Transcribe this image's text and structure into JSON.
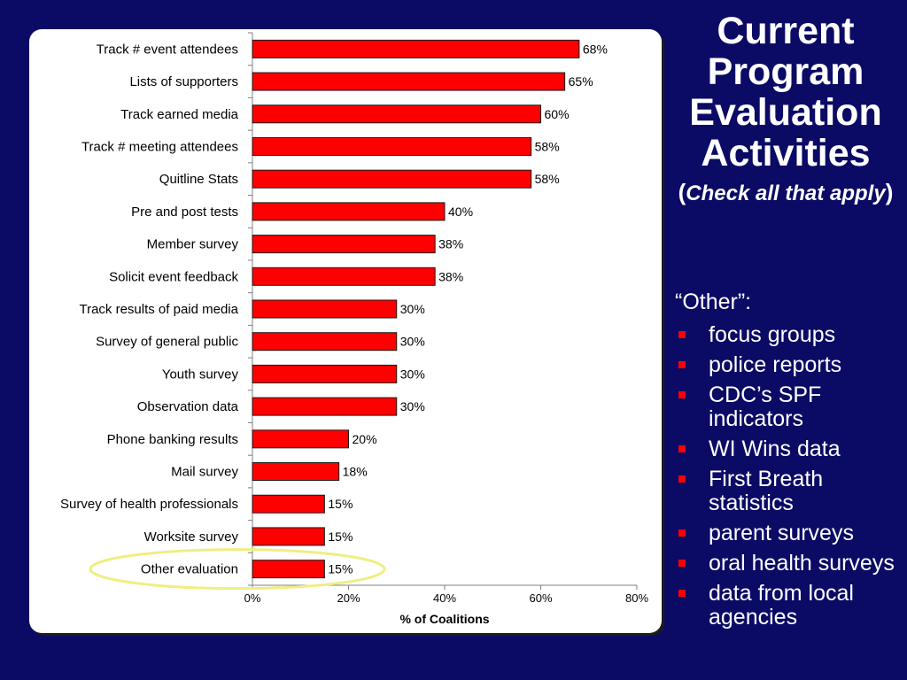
{
  "slide": {
    "title_lines": [
      "Current",
      "Program",
      "Evaluation",
      "Activities"
    ],
    "subtitle_open": "(",
    "subtitle_italic": "Check all that apply",
    "subtitle_close": ")"
  },
  "notes": {
    "heading": "“Other”:",
    "items": [
      "focus groups",
      "police reports",
      "CDC’s SPF indicators",
      "WI Wins data",
      "First Breath statistics",
      "parent surveys",
      "oral health surveys",
      "data from local agencies"
    ]
  },
  "colors": {
    "background": "#0b0b66",
    "bar_fill": "#ff0000",
    "bar_stroke": "#1a1a1a",
    "highlight_ellipse": "#f0ee80",
    "bullet": "#ff0000"
  },
  "chart_data": {
    "type": "bar",
    "orientation": "horizontal",
    "categories": [
      "Track # event attendees",
      "Lists of supporters",
      "Track earned media",
      "Track # meeting attendees",
      "Quitline Stats",
      "Pre and post tests",
      "Member survey",
      "Solicit event feedback",
      "Track results of paid media",
      "Survey of general public",
      "Youth survey",
      "Observation data",
      "Phone banking results",
      "Mail survey",
      "Survey of health professionals",
      "Worksite survey",
      "Other evaluation"
    ],
    "values": [
      68,
      65,
      60,
      58,
      58,
      40,
      38,
      38,
      30,
      30,
      30,
      30,
      20,
      18,
      15,
      15,
      15
    ],
    "value_labels": [
      "68%",
      "65%",
      "60%",
      "58%",
      "58%",
      "40%",
      "38%",
      "38%",
      "30%",
      "30%",
      "30%",
      "30%",
      "20%",
      "18%",
      "15%",
      "15%",
      "15%"
    ],
    "xlim": [
      0,
      80
    ],
    "xticks": [
      0,
      20,
      40,
      60,
      80
    ],
    "xtick_labels": [
      "0%",
      "20%",
      "40%",
      "60%",
      "80%"
    ],
    "xlabel": "% of Coalitions",
    "ylabel": "",
    "grid": false,
    "legend": "none",
    "highlighted_category": "Other evaluation"
  }
}
